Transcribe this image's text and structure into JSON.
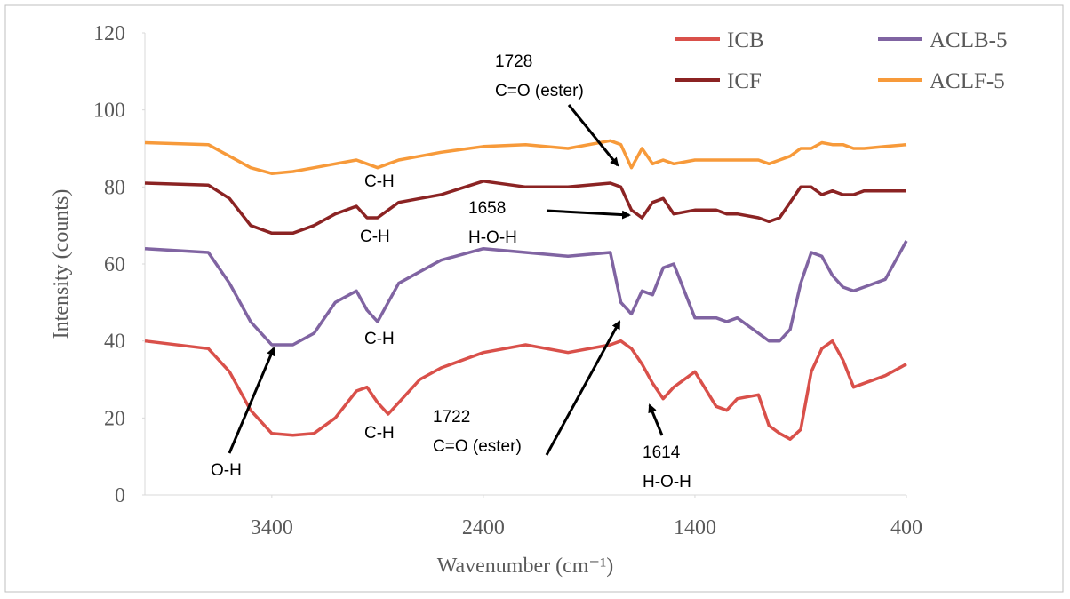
{
  "chart_data": {
    "type": "line",
    "x_label": "Wavenumber (cm⁻¹)",
    "y_label": "Intensity (counts)",
    "xlim": [
      4000,
      400
    ],
    "xticks": [
      3400,
      2400,
      1400,
      400
    ],
    "ylim": [
      0,
      120
    ],
    "yticks": [
      0,
      20,
      40,
      60,
      80,
      100,
      120
    ],
    "grid": false,
    "legend": "top-right",
    "x": [
      4000,
      3700,
      3600,
      3500,
      3400,
      3300,
      3200,
      3100,
      3000,
      2950,
      2900,
      2850,
      2800,
      2700,
      2600,
      2400,
      2200,
      2000,
      1800,
      1750,
      1700,
      1650,
      1600,
      1550,
      1500,
      1400,
      1300,
      1250,
      1200,
      1100,
      1050,
      1000,
      950,
      900,
      850,
      800,
      750,
      700,
      650,
      600,
      500,
      400
    ],
    "series": [
      {
        "name": "ICB",
        "color": "#d9504a",
        "values": [
          40,
          38,
          32,
          22,
          16,
          15.5,
          16,
          20,
          27,
          28,
          24,
          21,
          24,
          30,
          33,
          37,
          39,
          37,
          39,
          40,
          38,
          34,
          29,
          25,
          28,
          32,
          23,
          22,
          25,
          26,
          18,
          16,
          14.5,
          17,
          32,
          38,
          40,
          35,
          28,
          29,
          31,
          34
        ]
      },
      {
        "name": "ICF",
        "color": "#8b2323",
        "values": [
          81,
          80.5,
          77,
          70,
          68,
          68,
          70,
          73,
          75,
          72,
          72,
          74,
          76,
          77,
          78,
          81.5,
          80,
          80,
          81,
          80,
          74,
          72,
          76,
          77,
          73,
          74,
          74,
          73,
          73,
          72,
          71,
          72,
          76,
          80,
          80,
          78,
          79,
          78,
          78,
          79,
          79,
          79
        ]
      },
      {
        "name": "ACLB-5",
        "color": "#8064a2",
        "values": [
          64,
          63,
          55,
          45,
          39,
          39,
          42,
          50,
          53,
          48,
          45,
          50,
          55,
          58,
          61,
          64,
          63,
          62,
          63,
          50,
          47,
          53,
          52,
          59,
          60,
          46,
          46,
          45,
          46,
          42,
          40,
          40,
          43,
          55,
          63,
          62,
          57,
          54,
          53,
          54,
          56,
          66
        ]
      },
      {
        "name": "ACLF-5",
        "color": "#f79a3a",
        "values": [
          91.5,
          91,
          88,
          85,
          83.5,
          84,
          85,
          86,
          87,
          86,
          85,
          86,
          87,
          88,
          89,
          90.5,
          91,
          90,
          92,
          91,
          85,
          90,
          86,
          87,
          86,
          87,
          87,
          87,
          87,
          87,
          86,
          87,
          88,
          90,
          90,
          91.5,
          91,
          91,
          90,
          90,
          90.5,
          91
        ]
      }
    ],
    "annotations": [
      [
        "1728",
        "C=O (ester)"
      ],
      [
        "C-H"
      ],
      [
        "C-H"
      ],
      [
        "1658",
        "H-O-H"
      ],
      [
        "C-H"
      ],
      [
        "C-H"
      ],
      [
        "1722",
        "C=O (ester)"
      ],
      [
        "1614",
        "H-O-H"
      ],
      [
        "O-H"
      ]
    ]
  }
}
